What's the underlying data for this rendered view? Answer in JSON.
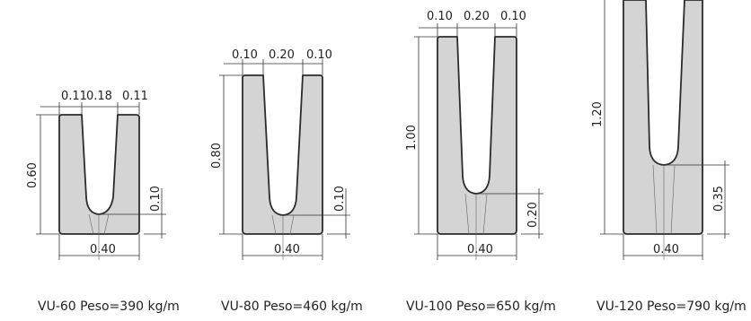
{
  "sections": [
    {
      "id": "vu-60",
      "caption": "VU-60 Peso=390 kg/m",
      "top_widths": [
        "0.11",
        "0.18",
        "0.11"
      ],
      "height_label": "0.60",
      "bottom_thickness": "0.10",
      "base_width": "0.40"
    },
    {
      "id": "vu-80",
      "caption": "VU-80 Peso=460 kg/m",
      "top_widths": [
        "0.10",
        "0.20",
        "0.10"
      ],
      "height_label": "0.80",
      "bottom_thickness": "0.10",
      "base_width": "0.40"
    },
    {
      "id": "vu-100",
      "caption": "VU-100 Peso=650 kg/m",
      "top_widths": [
        "0.10",
        "0.20",
        "0.10"
      ],
      "height_label": "1.00",
      "bottom_thickness": "0.20",
      "base_width": "0.40"
    },
    {
      "id": "vu-120",
      "caption": "VU-120 Peso=790 kg/m",
      "top_widths": [
        "",
        "",
        ""
      ],
      "height_label": "1.20",
      "bottom_thickness": "0.35",
      "base_width": "0.40"
    }
  ]
}
